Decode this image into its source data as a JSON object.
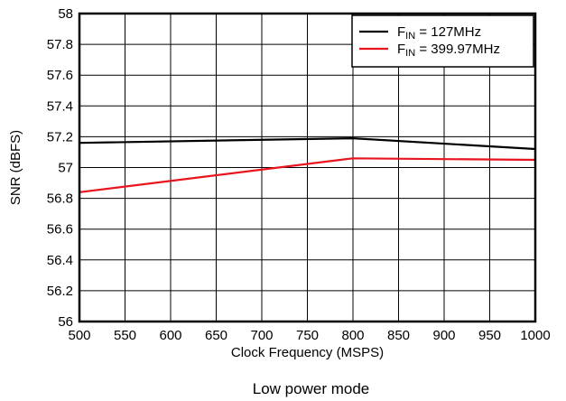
{
  "chart_data": {
    "type": "line",
    "xlabel": "Clock Frequency (MSPS)",
    "ylabel": "SNR (dBFS)",
    "caption": "Low power mode",
    "xlim": [
      500,
      1000
    ],
    "ylim": [
      56,
      58
    ],
    "x_ticks": [
      500,
      550,
      600,
      650,
      700,
      750,
      800,
      850,
      900,
      950,
      1000
    ],
    "y_ticks": [
      56,
      56.2,
      56.4,
      56.6,
      56.8,
      57,
      57.2,
      57.4,
      57.6,
      57.8,
      58
    ],
    "grid": true,
    "legend_position": "top-right",
    "series": [
      {
        "name_main": "F",
        "name_sub": "IN",
        "name_rest": " = 127MHz",
        "color": "#000000",
        "x": [
          500,
          800,
          1000
        ],
        "y": [
          57.16,
          57.19,
          57.12
        ]
      },
      {
        "name_main": "F",
        "name_sub": "IN",
        "name_rest": " = 399.97MHz",
        "color": "#e8141e",
        "x": [
          500,
          800,
          1000
        ],
        "y": [
          56.84,
          57.06,
          57.05
        ]
      }
    ]
  }
}
